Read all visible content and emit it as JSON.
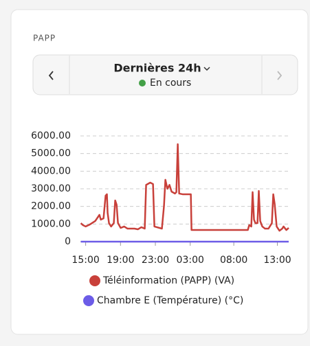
{
  "card": {
    "title": "PAPP"
  },
  "period_selector": {
    "label": "Dernières 24h",
    "status": "En cours"
  },
  "chart_data": {
    "type": "line",
    "x": [
      14.45,
      14.68,
      15.0,
      15.47,
      16.1,
      16.58,
      16.74,
      17.05,
      17.29,
      17.44,
      17.52,
      17.68,
      17.92,
      18.23,
      18.39,
      18.55,
      18.71,
      19.02,
      19.42,
      19.81,
      20.6,
      20.99,
      21.39,
      21.78,
      21.94,
      22.41,
      22.73,
      22.89,
      23.75,
      23.99,
      24.15,
      24.38,
      24.62,
      24.86,
      25.25,
      25.41,
      25.57,
      25.73,
      26.12,
      26.83,
      27.07,
      27.15,
      28.88,
      32.03,
      33.61,
      33.77,
      34.01,
      34.16,
      34.32,
      34.48,
      34.72,
      34.87,
      35.03,
      35.27,
      35.58,
      35.98,
      36.37,
      36.53,
      36.69,
      36.92,
      37.24,
      37.56,
      37.71,
      38.03,
      38.3
    ],
    "series": [
      {
        "name": "Téléinformation (PAPP) (VA)",
        "color": "#c8403a",
        "values": [
          1050,
          940,
          860,
          970,
          1170,
          1520,
          1250,
          1320,
          2610,
          2690,
          1640,
          1050,
          860,
          1050,
          2340,
          2100,
          1050,
          780,
          860,
          740,
          740,
          700,
          820,
          740,
          3220,
          3350,
          3270,
          860,
          740,
          2030,
          3510,
          3000,
          3220,
          2840,
          2730,
          2810,
          5530,
          2730,
          2690,
          2690,
          2690,
          660,
          660,
          660,
          660,
          940,
          860,
          2810,
          1250,
          1050,
          1050,
          2880,
          1170,
          860,
          740,
          740,
          1050,
          2690,
          2140,
          860,
          620,
          740,
          860,
          660,
          780
        ]
      },
      {
        "name": "Chambre E (Température) (°C)",
        "color": "#6c5ce7",
        "x": [
          14.45,
          38.3
        ],
        "values": [
          0,
          0
        ]
      }
    ],
    "xlim": [
      14.4,
      38.3
    ],
    "xticks": [
      {
        "value": 15,
        "label": "15:00"
      },
      {
        "value": 19,
        "label": "19:00"
      },
      {
        "value": 23,
        "label": "23:00"
      },
      {
        "value": 27,
        "label": "03:00"
      },
      {
        "value": 32,
        "label": "08:00"
      },
      {
        "value": 37,
        "label": "13:00"
      }
    ],
    "ylim": [
      0,
      6000
    ],
    "yticks": [
      0,
      {
        "value": 1000,
        "label": "1000.00"
      },
      {
        "value": 2000,
        "label": "2000.00"
      },
      {
        "value": 3000,
        "label": "3000.00"
      },
      {
        "value": 4000,
        "label": "4000.00"
      },
      {
        "value": 5000,
        "label": "5000.00"
      },
      {
        "value": 6000,
        "label": "6000.00"
      }
    ],
    "grid": true
  }
}
